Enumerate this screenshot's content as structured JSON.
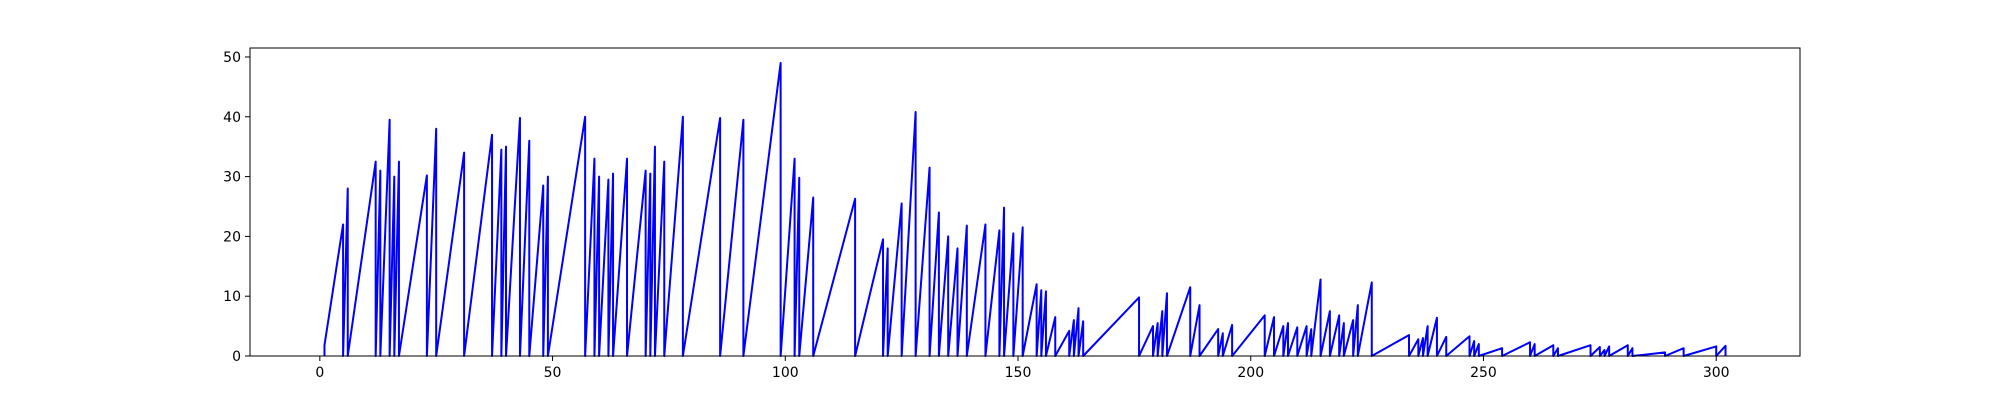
{
  "chart_data": {
    "type": "line",
    "title": "",
    "xlabel": "",
    "ylabel": "",
    "xlim": [
      -15,
      318
    ],
    "ylim": [
      0,
      51.5
    ],
    "grid": false,
    "legend": "none",
    "x_ticks": [
      0,
      50,
      100,
      150,
      200,
      250,
      300
    ],
    "x_tick_labels": [
      "0",
      "50",
      "100",
      "150",
      "200",
      "250",
      "300"
    ],
    "y_ticks": [
      0,
      10,
      20,
      30,
      40,
      50
    ],
    "y_tick_labels": [
      "0",
      "10",
      "20",
      "30",
      "40",
      "50"
    ],
    "series": [
      {
        "color": "#0000ff",
        "points": [
          [
            1,
            0
          ],
          [
            1,
            1.8
          ],
          [
            5,
            22
          ],
          [
            5,
            0
          ],
          [
            6,
            28
          ],
          [
            6,
            0
          ],
          [
            12,
            32.5
          ],
          [
            12,
            0
          ],
          [
            13,
            31
          ],
          [
            13,
            0
          ],
          [
            15,
            39.5
          ],
          [
            15,
            0
          ],
          [
            16,
            30
          ],
          [
            16,
            0
          ],
          [
            17,
            32.5
          ],
          [
            17,
            0
          ],
          [
            23,
            30.2
          ],
          [
            23,
            0
          ],
          [
            25,
            38
          ],
          [
            25,
            0
          ],
          [
            31,
            34
          ],
          [
            31,
            0
          ],
          [
            37,
            37
          ],
          [
            37,
            0
          ],
          [
            39,
            34.5
          ],
          [
            39,
            0
          ],
          [
            40,
            35
          ],
          [
            40,
            0
          ],
          [
            43,
            39.8
          ],
          [
            43,
            0
          ],
          [
            45,
            36
          ],
          [
            45,
            0
          ],
          [
            48,
            28.5
          ],
          [
            48,
            0
          ],
          [
            49,
            30
          ],
          [
            49,
            0
          ],
          [
            57,
            40
          ],
          [
            57,
            0
          ],
          [
            59,
            33
          ],
          [
            59,
            0
          ],
          [
            60,
            30
          ],
          [
            60,
            0
          ],
          [
            62,
            29.5
          ],
          [
            62,
            0
          ],
          [
            63,
            30.5
          ],
          [
            63,
            0
          ],
          [
            66,
            33
          ],
          [
            66,
            0
          ],
          [
            70,
            31
          ],
          [
            70,
            0
          ],
          [
            71,
            30.5
          ],
          [
            71,
            0
          ],
          [
            72,
            35
          ],
          [
            72,
            0
          ],
          [
            74,
            32.5
          ],
          [
            74,
            0
          ],
          [
            78,
            40
          ],
          [
            78,
            0
          ],
          [
            86,
            39.8
          ],
          [
            86,
            0
          ],
          [
            91,
            39.5
          ],
          [
            91,
            0
          ],
          [
            99,
            49
          ],
          [
            99,
            0
          ],
          [
            102,
            33
          ],
          [
            102,
            0
          ],
          [
            103,
            29.8
          ],
          [
            103,
            0
          ],
          [
            106,
            26.5
          ],
          [
            106,
            0
          ],
          [
            115,
            26.3
          ],
          [
            115,
            0
          ],
          [
            121,
            19.5
          ],
          [
            121,
            0
          ],
          [
            122,
            18
          ],
          [
            122,
            0
          ],
          [
            125,
            25.5
          ],
          [
            125,
            0
          ],
          [
            128,
            40.8
          ],
          [
            128,
            0
          ],
          [
            131,
            31.5
          ],
          [
            131,
            0
          ],
          [
            133,
            24
          ],
          [
            133,
            0
          ],
          [
            135,
            20
          ],
          [
            135,
            0
          ],
          [
            137,
            18
          ],
          [
            137,
            0
          ],
          [
            139,
            21.8
          ],
          [
            139,
            0
          ],
          [
            143,
            22
          ],
          [
            143,
            0
          ],
          [
            146,
            21
          ],
          [
            146,
            0
          ],
          [
            147,
            24.8
          ],
          [
            147,
            0
          ],
          [
            149,
            20.5
          ],
          [
            149,
            0
          ],
          [
            151,
            21.5
          ],
          [
            151,
            0
          ],
          [
            154,
            12
          ],
          [
            154,
            0
          ],
          [
            155,
            11
          ],
          [
            155,
            0
          ],
          [
            156,
            10.8
          ],
          [
            156,
            0
          ],
          [
            158,
            6.5
          ],
          [
            158,
            0
          ],
          [
            161,
            4.2
          ],
          [
            161,
            0
          ],
          [
            162,
            6
          ],
          [
            162,
            0
          ],
          [
            163,
            8
          ],
          [
            163,
            0
          ],
          [
            164,
            5.8
          ],
          [
            164,
            0
          ],
          [
            176,
            9.8
          ],
          [
            176,
            0
          ],
          [
            179,
            5
          ],
          [
            179,
            0
          ],
          [
            180,
            5.5
          ],
          [
            180,
            0
          ],
          [
            181,
            7.5
          ],
          [
            181,
            0
          ],
          [
            182,
            10.5
          ],
          [
            182,
            0
          ],
          [
            187,
            11.5
          ],
          [
            187,
            0
          ],
          [
            189,
            8.5
          ],
          [
            189,
            0
          ],
          [
            193,
            4.5
          ],
          [
            193,
            0
          ],
          [
            194,
            3.8
          ],
          [
            194,
            0
          ],
          [
            196,
            5.2
          ],
          [
            196,
            0
          ],
          [
            203,
            6.8
          ],
          [
            203,
            0
          ],
          [
            205,
            6.5
          ],
          [
            205,
            0
          ],
          [
            207,
            5
          ],
          [
            207,
            0
          ],
          [
            208,
            5.5
          ],
          [
            208,
            0
          ],
          [
            210,
            4.8
          ],
          [
            210,
            0
          ],
          [
            212,
            5
          ],
          [
            212,
            0
          ],
          [
            213,
            4.5
          ],
          [
            213,
            0
          ],
          [
            215,
            12.8
          ],
          [
            215,
            0
          ],
          [
            217,
            7.5
          ],
          [
            217,
            0
          ],
          [
            219,
            6.8
          ],
          [
            219,
            0
          ],
          [
            220,
            5.5
          ],
          [
            220,
            0
          ],
          [
            222,
            6
          ],
          [
            222,
            0
          ],
          [
            223,
            8.5
          ],
          [
            223,
            0
          ],
          [
            226,
            12.3
          ],
          [
            226,
            0
          ],
          [
            234,
            3.5
          ],
          [
            234,
            0
          ],
          [
            236,
            2.8
          ],
          [
            236,
            0
          ],
          [
            237,
            3
          ],
          [
            237,
            0
          ],
          [
            238,
            5
          ],
          [
            238,
            0
          ],
          [
            240,
            6.4
          ],
          [
            240,
            0
          ],
          [
            242,
            3.2
          ],
          [
            242,
            0
          ],
          [
            247,
            3.3
          ],
          [
            247,
            0
          ],
          [
            248,
            2.5
          ],
          [
            248,
            0
          ],
          [
            249,
            2
          ],
          [
            249,
            0
          ],
          [
            254,
            1.3
          ],
          [
            254,
            0
          ],
          [
            260,
            2.3
          ],
          [
            260,
            0
          ],
          [
            261,
            2
          ],
          [
            261,
            0
          ],
          [
            265,
            1.8
          ],
          [
            265,
            0
          ],
          [
            266,
            1.3
          ],
          [
            266,
            0
          ],
          [
            273,
            1.8
          ],
          [
            273,
            0
          ],
          [
            275,
            1.5
          ],
          [
            275,
            0
          ],
          [
            276,
            1
          ],
          [
            276,
            0
          ],
          [
            277,
            1.6
          ],
          [
            277,
            0
          ],
          [
            281,
            1.8
          ],
          [
            281,
            0
          ],
          [
            282,
            1.3
          ],
          [
            282,
            0
          ],
          [
            289,
            0.6
          ],
          [
            289,
            0
          ],
          [
            293,
            1.3
          ],
          [
            293,
            0
          ],
          [
            300,
            1.6
          ],
          [
            300,
            0
          ],
          [
            302,
            1.7
          ],
          [
            302,
            0
          ]
        ]
      }
    ]
  }
}
